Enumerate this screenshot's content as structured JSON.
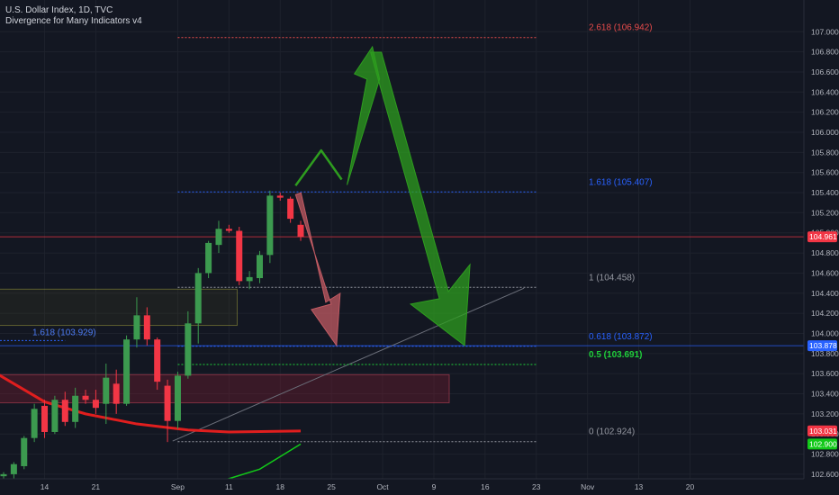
{
  "legend": {
    "title": "U.S. Dollar Index, 1D, TVC",
    "indicator": "Divergence for Many Indicators v4"
  },
  "colors": {
    "background": "#131722",
    "up": "#26a69a",
    "up_fill": "#3c9a4f",
    "down": "#f23645",
    "grid": "#1e222d",
    "ma_red": "#e01e1e",
    "ma_green": "#12c919",
    "fib_red": "#e84b4b",
    "fib_blue": "#2962ff",
    "fib_green": "#1fd03a",
    "fib_gray": "#9598a1",
    "arrow_green": "#2e9d1f",
    "arrow_red": "#c25b63"
  },
  "chart_data": {
    "type": "candlestick",
    "ylim": [
      102.55,
      107.15
    ],
    "y_ticks": [
      "107.000",
      "106.800",
      "106.600",
      "106.400",
      "106.200",
      "106.000",
      "105.800",
      "105.600",
      "105.400",
      "105.200",
      "105.000",
      "104.800",
      "104.600",
      "104.400",
      "104.200",
      "104.000",
      "103.800",
      "103.600",
      "103.400",
      "103.200",
      "103.000",
      "102.800",
      "102.600"
    ],
    "x_ticks": [
      {
        "label": "14",
        "bar": 4
      },
      {
        "label": "21",
        "bar": 9
      },
      {
        "label": "Sep",
        "bar": 17
      },
      {
        "label": "11",
        "bar": 22
      },
      {
        "label": "18",
        "bar": 27
      },
      {
        "label": "25",
        "bar": 32
      },
      {
        "label": "Oct",
        "bar": 37
      },
      {
        "label": "9",
        "bar": 42
      },
      {
        "label": "16",
        "bar": 47
      },
      {
        "label": "23",
        "bar": 52
      },
      {
        "label": "Nov",
        "bar": 57
      },
      {
        "label": "13",
        "bar": 62
      },
      {
        "label": "20",
        "bar": 67
      }
    ],
    "candles": [
      {
        "o": 102.58,
        "h": 102.62,
        "l": 102.55,
        "c": 102.6
      },
      {
        "o": 102.6,
        "h": 102.72,
        "l": 102.55,
        "c": 102.7
      },
      {
        "o": 102.68,
        "h": 102.98,
        "l": 102.65,
        "c": 102.96
      },
      {
        "o": 102.96,
        "h": 103.3,
        "l": 102.92,
        "c": 103.25
      },
      {
        "o": 103.28,
        "h": 103.34,
        "l": 102.96,
        "c": 103.02
      },
      {
        "o": 103.02,
        "h": 103.38,
        "l": 103.0,
        "c": 103.34
      },
      {
        "o": 103.34,
        "h": 103.42,
        "l": 103.08,
        "c": 103.12
      },
      {
        "o": 103.12,
        "h": 103.46,
        "l": 103.06,
        "c": 103.38
      },
      {
        "o": 103.38,
        "h": 103.44,
        "l": 103.3,
        "c": 103.34
      },
      {
        "o": 103.34,
        "h": 103.44,
        "l": 103.2,
        "c": 103.26
      },
      {
        "o": 103.3,
        "h": 103.7,
        "l": 103.1,
        "c": 103.56
      },
      {
        "o": 103.5,
        "h": 103.64,
        "l": 103.2,
        "c": 103.3
      },
      {
        "o": 103.3,
        "h": 103.98,
        "l": 103.28,
        "c": 103.94
      },
      {
        "o": 103.94,
        "h": 104.36,
        "l": 103.86,
        "c": 104.18
      },
      {
        "o": 104.18,
        "h": 104.26,
        "l": 103.88,
        "c": 103.94
      },
      {
        "o": 103.94,
        "h": 103.96,
        "l": 103.44,
        "c": 103.52
      },
      {
        "o": 103.48,
        "h": 103.54,
        "l": 102.92,
        "c": 103.13
      },
      {
        "o": 103.13,
        "h": 103.62,
        "l": 103.05,
        "c": 103.58
      },
      {
        "o": 103.58,
        "h": 104.22,
        "l": 103.55,
        "c": 104.1
      },
      {
        "o": 104.1,
        "h": 104.65,
        "l": 103.9,
        "c": 104.6
      },
      {
        "o": 104.6,
        "h": 104.92,
        "l": 104.55,
        "c": 104.9
      },
      {
        "o": 104.88,
        "h": 105.12,
        "l": 104.8,
        "c": 105.04
      },
      {
        "o": 105.04,
        "h": 105.08,
        "l": 105.0,
        "c": 105.02
      },
      {
        "o": 105.02,
        "h": 105.06,
        "l": 104.48,
        "c": 104.52
      },
      {
        "o": 104.52,
        "h": 104.62,
        "l": 104.44,
        "c": 104.56
      },
      {
        "o": 104.55,
        "h": 104.82,
        "l": 104.5,
        "c": 104.78
      },
      {
        "o": 104.78,
        "h": 105.42,
        "l": 104.7,
        "c": 105.37
      },
      {
        "o": 105.37,
        "h": 105.4,
        "l": 105.32,
        "c": 105.35
      },
      {
        "o": 105.34,
        "h": 105.36,
        "l": 105.1,
        "c": 105.14
      },
      {
        "o": 105.08,
        "h": 105.12,
        "l": 104.92,
        "c": 104.96
      }
    ],
    "ma_red": [
      {
        "bar": -1.5,
        "y": 103.65
      },
      {
        "bar": 4,
        "y": 103.32
      },
      {
        "bar": 8,
        "y": 103.2
      },
      {
        "bar": 13,
        "y": 103.1
      },
      {
        "bar": 18,
        "y": 103.04
      },
      {
        "bar": 22,
        "y": 103.02
      },
      {
        "bar": 29,
        "y": 103.03
      }
    ],
    "ma_green": [
      {
        "bar": 21.8,
        "y": 102.55
      },
      {
        "bar": 25,
        "y": 102.65
      },
      {
        "bar": 29,
        "y": 102.9
      }
    ],
    "fib_levels": [
      {
        "label": "2.618 (106.942)",
        "value": 106.942,
        "color": "fib_red",
        "start_bar": 17,
        "end_bar": 52,
        "bold": false
      },
      {
        "label": "1.618 (105.407)",
        "value": 105.407,
        "color": "fib_blue",
        "start_bar": 17,
        "end_bar": 52,
        "bold": false
      },
      {
        "label": "1 (104.458)",
        "value": 104.458,
        "color": "fib_gray",
        "start_bar": 17,
        "end_bar": 52,
        "bold": false
      },
      {
        "label": "0.618 (103.872)",
        "value": 103.872,
        "color": "fib_blue",
        "start_bar": 17,
        "end_bar": 52,
        "bold": false
      },
      {
        "label": "0.5 (103.691)",
        "value": 103.691,
        "color": "fib_green",
        "start_bar": 17,
        "end_bar": 52,
        "bold": true
      },
      {
        "label": "0 (102.924)",
        "value": 102.924,
        "color": "fib_gray",
        "start_bar": 17,
        "end_bar": 52,
        "bold": false
      }
    ],
    "left_fib": {
      "label": "1.618 (103.929)",
      "value": 103.929
    },
    "price_badges": [
      {
        "label": "104.961",
        "value": 104.961,
        "color": "#f23645"
      },
      {
        "label": "103.878",
        "value": 103.878,
        "color": "#2962ff"
      },
      {
        "label": "103.031",
        "value": 103.031,
        "color": "#f23645"
      },
      {
        "label": "102.900",
        "value": 102.9,
        "color": "#12c919"
      }
    ],
    "boxes": [
      {
        "kind": "demand",
        "start_bar": -1.5,
        "end_bar": 22.8,
        "top": 104.44,
        "bottom": 104.08
      },
      {
        "kind": "supply",
        "start_bar": -1.5,
        "end_bar": 43.5,
        "top": 103.59,
        "bottom": 103.31
      }
    ],
    "hlines": [
      {
        "value": 104.961,
        "color": "#f23645"
      },
      {
        "value": 103.878,
        "color": "#2962ff"
      }
    ],
    "trendline": {
      "from": {
        "bar": 16.5,
        "y": 102.93
      },
      "to": {
        "bar": 50.8,
        "y": 104.45
      }
    },
    "projection_up": [
      {
        "bar": 28.5,
        "y": 105.47
      },
      {
        "bar": 31,
        "y": 105.82
      },
      {
        "bar": 33,
        "y": 105.53
      },
      {
        "bar": 36,
        "y": 106.85
      },
      {
        "bar": 45,
        "y": 103.88
      }
    ],
    "projection_down": [
      {
        "bar": 28.5,
        "y": 105.38
      },
      {
        "bar": 32.5,
        "y": 103.88
      }
    ]
  }
}
